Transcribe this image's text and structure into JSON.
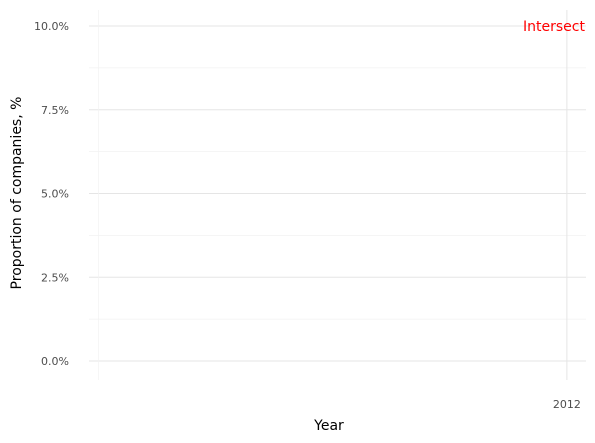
{
  "chart_data": {
    "type": "line",
    "title": "",
    "xlabel": "Year",
    "ylabel": "Proportion of companies, %",
    "x_ticks": [
      "2012"
    ],
    "y_ticks": [
      "0.0%",
      "2.5%",
      "5.0%",
      "7.5%",
      "10.0%"
    ],
    "ylim": [
      0,
      10
    ],
    "xlim": [
      2011.9,
      2012.004
    ],
    "grid": true,
    "series": [],
    "annotations": [
      {
        "text": "Intersect",
        "x": 2012,
        "y": 10,
        "color": "#ff0000"
      }
    ]
  }
}
